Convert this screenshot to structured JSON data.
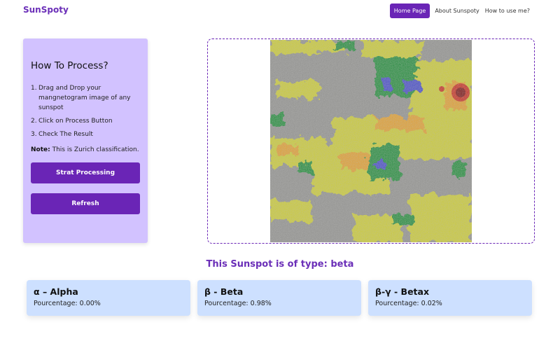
{
  "app": {
    "brand": "SunSpoty"
  },
  "nav": {
    "items": [
      {
        "label": "Home Page",
        "active": true
      },
      {
        "label": "About Sunspoty",
        "active": false
      },
      {
        "label": "How to use me?",
        "active": false
      }
    ]
  },
  "instructions": {
    "title": "How To Process?",
    "steps": [
      {
        "num": "1.",
        "text": "Drag and Drop your mangnetogram image of any sunspot"
      },
      {
        "num": "2.",
        "text": "Click on Process Button"
      },
      {
        "num": "3.",
        "text": "Check The Result"
      }
    ],
    "note_label": "Note:",
    "note_text": " This is Zurich classification.",
    "process_button": "Strat Processing",
    "refresh_button": "Refresh"
  },
  "dropzone": {
    "image": "sunspot magnetogram"
  },
  "result": {
    "heading": "This Sunspot is of type: beta",
    "pct_label": "Pourcentage: ",
    "classes": [
      {
        "title": "α – Alpha",
        "value": "0.00%"
      },
      {
        "title": "β - Beta",
        "value": "0.98%"
      },
      {
        "title": "β-γ - Betax",
        "value": "0.02%"
      }
    ]
  },
  "colors": {
    "accent": "#6a25b6",
    "brand": "#6b2fb8",
    "panel": "#d2c2ff",
    "card": "#cde0ff"
  }
}
